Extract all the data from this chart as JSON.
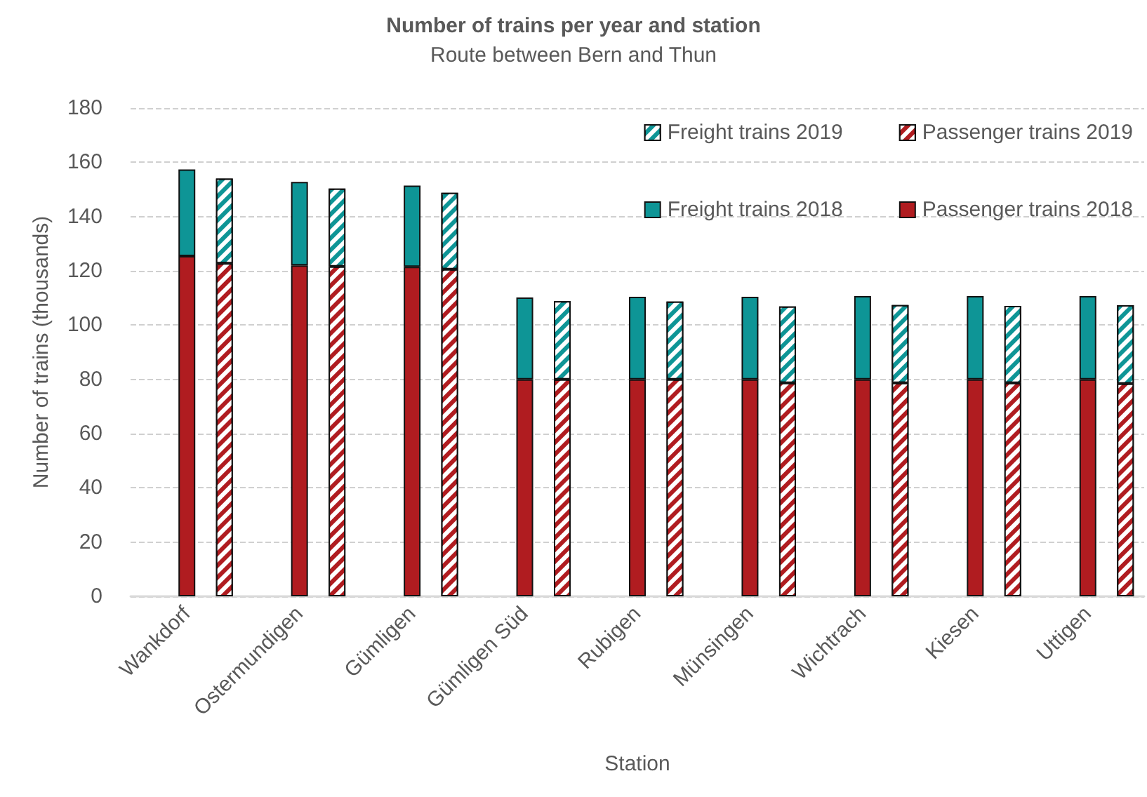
{
  "chart_data": {
    "type": "bar",
    "title": "Number of trains per year and station",
    "subtitle": "Route between Bern and Thun",
    "xlabel": "Station",
    "ylabel": "Number of trains (thousands)",
    "categories": [
      null,
      "Wankdorf",
      null,
      null,
      "Ostermundigen",
      null,
      null,
      "Gümligen",
      null,
      null,
      "Gümligen Süd",
      null,
      null,
      "Rubigen",
      null,
      null,
      "Münsingen",
      null,
      null,
      "Wichtrach",
      null,
      null,
      "Kiesen",
      null,
      null,
      "Uttigen",
      null
    ],
    "stacked": true,
    "series": [
      {
        "name": "Passenger trains 2018",
        "color": "#b01c20",
        "values": [
          null,
          125.4,
          null,
          null,
          122,
          null,
          null,
          121.5,
          null,
          null,
          80,
          null,
          null,
          80,
          null,
          null,
          80,
          null,
          null,
          80,
          null,
          null,
          80,
          null,
          null,
          80,
          null
        ]
      },
      {
        "name": "Freight trains 2018",
        "color": "#0e9596",
        "values": [
          null,
          32,
          null,
          null,
          30.8,
          null,
          null,
          29.9,
          null,
          null,
          30.2,
          null,
          null,
          30.4,
          null,
          null,
          30.4,
          null,
          null,
          30.7,
          null,
          null,
          30.7,
          null,
          null,
          30.7,
          null
        ]
      },
      {
        "name": "Passenger trains 2019",
        "color": "#b01c20",
        "values": [
          null,
          null,
          122.8,
          null,
          null,
          121.6,
          null,
          null,
          120.6,
          null,
          null,
          80,
          null,
          null,
          80,
          null,
          null,
          78.7,
          null,
          null,
          78.7,
          null,
          null,
          78.7,
          null,
          null,
          78.4
        ]
      },
      {
        "name": "Freight trains 2019",
        "color": "#0e9596",
        "values": [
          null,
          null,
          31.2,
          null,
          null,
          28.7,
          null,
          null,
          28.2,
          null,
          null,
          28.8,
          null,
          null,
          28.7,
          null,
          null,
          28.2,
          null,
          null,
          28.7,
          null,
          null,
          28.4,
          null,
          null,
          28.9
        ]
      }
    ],
    "ylim": [
      0,
      180
    ],
    "yticks": [
      0,
      20,
      40,
      60,
      80,
      100,
      120,
      140,
      160,
      180
    ],
    "grid": "y",
    "legend": "top right"
  }
}
